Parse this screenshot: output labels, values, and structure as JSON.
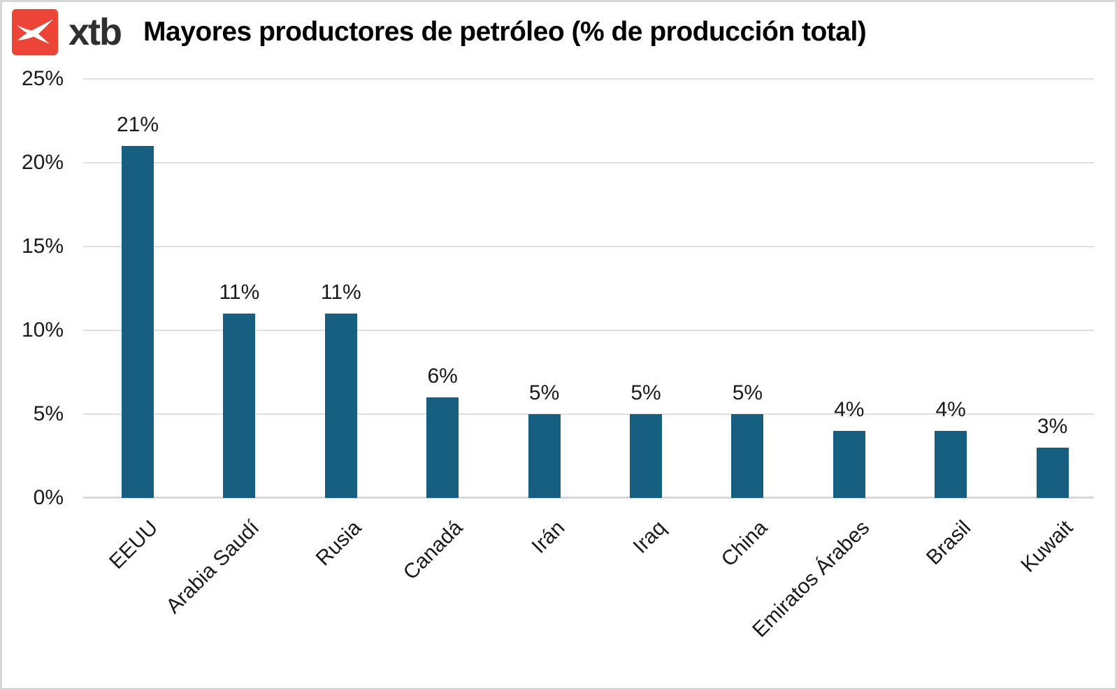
{
  "page": {
    "background": "#ffffff",
    "border_color": "#d7d7d7"
  },
  "header": {
    "brand": "xtb",
    "logo_icon": "xtb-x-swoosh-icon",
    "logo_red": "#ec4538",
    "wordmark_color": "#2f2f2f",
    "title": "Mayores productores de petróleo (% de producción total)"
  },
  "chart_data": {
    "type": "bar",
    "title": "Mayores productores de petróleo (% de producción total)",
    "categories": [
      "EEUU",
      "Arabia Saudí",
      "Rusia",
      "Canadá",
      "Irán",
      "Iraq",
      "China",
      "Emiratos Árabes",
      "Brasil",
      "Kuwait"
    ],
    "values": [
      21,
      11,
      11,
      6,
      5,
      5,
      5,
      4,
      4,
      3
    ],
    "value_labels": [
      "21%",
      "11%",
      "11%",
      "6%",
      "5%",
      "5%",
      "5%",
      "4%",
      "4%",
      "3%"
    ],
    "xlabel": "",
    "ylabel": "",
    "ylim": [
      0,
      25
    ],
    "yticks": [
      0,
      5,
      10,
      15,
      20,
      25
    ],
    "ytick_labels": [
      "0%",
      "5%",
      "10%",
      "15%",
      "20%",
      "25%"
    ],
    "grid": "horizontal gridlines on",
    "legend": "none",
    "bar_color": "#165f80",
    "gridline_color": "#e0e0e0",
    "baseline_color": "#d8d8d8",
    "label_color": "#1a1a1a"
  }
}
